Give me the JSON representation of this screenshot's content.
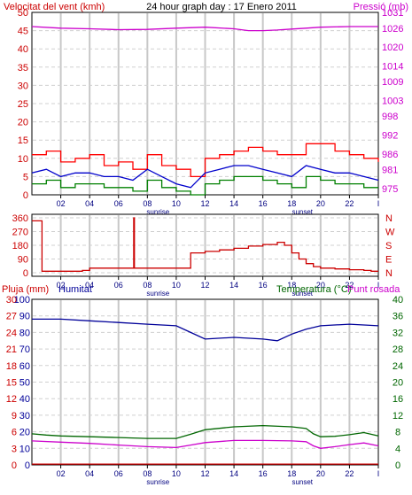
{
  "chart_data": [
    {
      "type": "line",
      "title": "24 hour graph day : 17 Enero 2011",
      "left_axis_label": "Velocitat del vent (kmh)",
      "right_axis_label": "Pressió (mb)",
      "x_ticks": [
        "02",
        "04",
        "06",
        "08",
        "10",
        "12",
        "14",
        "16",
        "18",
        "20",
        "22",
        "I"
      ],
      "x_annotations": [
        {
          "x": 8,
          "label": "sunrise"
        },
        {
          "x": 18,
          "label": "sunset"
        }
      ],
      "xlim": [
        0,
        24
      ],
      "ylim_left": [
        0,
        50
      ],
      "yticks_left": [
        0,
        5,
        10,
        15,
        20,
        25,
        30,
        35,
        40,
        45,
        50
      ],
      "ylim_right": [
        973,
        1031
      ],
      "yticks_right": [
        975,
        981,
        986,
        992,
        998,
        1003,
        1009,
        1014,
        1020,
        1026,
        1031
      ],
      "grid": true,
      "series": [
        {
          "role": "gust",
          "axis": "left",
          "color": "#ff0000",
          "style": "step",
          "x": [
            0,
            1,
            2,
            3,
            4,
            5,
            6,
            7,
            8,
            9,
            10,
            11,
            12,
            13,
            14,
            15,
            16,
            17,
            18,
            19,
            20,
            21,
            22,
            23,
            24
          ],
          "y": [
            11,
            12,
            9,
            10,
            11,
            8,
            9,
            7,
            11,
            8,
            7,
            5,
            10,
            11,
            12,
            13,
            12,
            11,
            11,
            14,
            14,
            12,
            11,
            10,
            9
          ]
        },
        {
          "role": "speed",
          "axis": "left",
          "color": "#0000cc",
          "style": "line",
          "x": [
            0,
            1,
            2,
            3,
            4,
            5,
            6,
            7,
            8,
            9,
            10,
            11,
            12,
            13,
            14,
            15,
            16,
            17,
            18,
            19,
            20,
            21,
            22,
            23,
            24
          ],
          "y": [
            6,
            7,
            5,
            6,
            6,
            5,
            5,
            4,
            7,
            5,
            3,
            2,
            6,
            7,
            8,
            8,
            7,
            6,
            5,
            8,
            7,
            6,
            6,
            5,
            4
          ]
        },
        {
          "role": "lull",
          "axis": "left",
          "color": "#008000",
          "style": "step",
          "x": [
            0,
            1,
            2,
            3,
            4,
            5,
            6,
            7,
            8,
            9,
            10,
            11,
            12,
            13,
            14,
            15,
            16,
            17,
            18,
            19,
            20,
            21,
            22,
            23,
            24
          ],
          "y": [
            3,
            4,
            2,
            3,
            3,
            2,
            2,
            1,
            4,
            2,
            1,
            0,
            3,
            4,
            5,
            5,
            4,
            3,
            2,
            5,
            4,
            3,
            3,
            2,
            2
          ]
        },
        {
          "name": "Pressió",
          "axis": "right",
          "color": "#cc00cc",
          "style": "line",
          "x": [
            0,
            2,
            4,
            6,
            8,
            10,
            12,
            14,
            15,
            16,
            17,
            18,
            19,
            20,
            22,
            24
          ],
          "y": [
            1026.5,
            1026.0,
            1025.8,
            1025.5,
            1025.6,
            1026.0,
            1026.3,
            1025.8,
            1025.2,
            1025.2,
            1025.4,
            1025.7,
            1026.0,
            1026.3,
            1026.5,
            1026.5
          ]
        }
      ]
    },
    {
      "type": "line",
      "x_ticks": [
        "02",
        "04",
        "06",
        "08",
        "10",
        "12",
        "14",
        "16",
        "18",
        "20",
        "22",
        "I"
      ],
      "x_annotations": [
        {
          "x": 8,
          "label": "sunrise"
        },
        {
          "x": 18,
          "label": "sunset"
        }
      ],
      "xlim": [
        0,
        24
      ],
      "ylim": [
        0,
        360
      ],
      "yticks_left": [
        0,
        90,
        180,
        270,
        360
      ],
      "yticks_right": [
        "N",
        "E",
        "S",
        "W",
        "N"
      ],
      "grid": true,
      "series": [
        {
          "role": "wind-direction",
          "color": "#cc0000",
          "style": "step",
          "x": [
            0,
            0.6,
            0.7,
            2,
            3,
            3.5,
            4,
            5,
            6,
            7,
            7.05,
            7.1,
            8,
            9,
            10,
            10.9,
            11,
            12,
            13,
            14,
            15,
            16,
            17,
            17.5,
            18,
            18.5,
            19,
            19.5,
            20,
            21,
            22,
            23,
            23.5,
            24
          ],
          "y": [
            340,
            340,
            10,
            10,
            10,
            15,
            30,
            30,
            30,
            30,
            360,
            30,
            30,
            30,
            30,
            30,
            130,
            140,
            150,
            160,
            175,
            185,
            200,
            180,
            130,
            90,
            60,
            40,
            30,
            25,
            20,
            15,
            10,
            10
          ]
        }
      ]
    },
    {
      "type": "line",
      "left_axis_label": "Pluja (mm)",
      "left2_axis_label": "Humitat",
      "right_axis_label": "Temperatura (°C)",
      "right2_axis_label": "Punt rosada",
      "x_ticks": [
        "02",
        "04",
        "06",
        "08",
        "10",
        "12",
        "14",
        "16",
        "18",
        "20",
        "22",
        "I"
      ],
      "x_annotations": [
        {
          "x": 8,
          "label": "sunrise"
        },
        {
          "x": 18,
          "label": "sunset"
        }
      ],
      "xlim": [
        0,
        24
      ],
      "yticks_rain": [
        0,
        3,
        6,
        9,
        12,
        15,
        18,
        21,
        24,
        27,
        30
      ],
      "yticks_humidity": [
        0,
        10,
        20,
        30,
        40,
        50,
        60,
        70,
        80,
        90,
        100
      ],
      "ylim_right": [
        0,
        40
      ],
      "yticks_right": [
        0,
        4,
        8,
        12,
        16,
        20,
        24,
        28,
        32,
        36,
        40
      ],
      "grid": true,
      "series": [
        {
          "name": "Humitat",
          "axis": "humidity",
          "color": "#000099",
          "style": "line",
          "x": [
            0,
            2,
            4,
            6,
            8,
            10,
            11,
            12,
            14,
            16,
            17,
            18,
            19,
            20,
            22,
            24
          ],
          "y": [
            88,
            88,
            87,
            86,
            85,
            84,
            80,
            76,
            77,
            76,
            75,
            79,
            82,
            84,
            85,
            84
          ]
        },
        {
          "name": "Temperatura",
          "axis": "right",
          "color": "#006600",
          "style": "line",
          "x": [
            0,
            1,
            2,
            4,
            6,
            8,
            10,
            11,
            12,
            14,
            16,
            18,
            19,
            19.5,
            20,
            21,
            22,
            23,
            24
          ],
          "y": [
            7.5,
            7.2,
            7.0,
            6.8,
            6.6,
            6.4,
            6.4,
            7.4,
            8.5,
            9.2,
            9.5,
            9.2,
            8.8,
            7.5,
            6.8,
            6.9,
            7.3,
            7.8,
            7.0
          ]
        },
        {
          "name": "Punt rosada",
          "axis": "right",
          "color": "#cc00cc",
          "style": "line",
          "x": [
            0,
            2,
            4,
            6,
            8,
            10,
            11,
            12,
            14,
            16,
            18,
            19,
            19.5,
            20,
            21,
            22,
            23,
            24
          ],
          "y": [
            5.8,
            5.5,
            5.2,
            4.8,
            4.4,
            4.2,
            4.8,
            5.4,
            5.9,
            5.9,
            5.8,
            5.6,
            4.6,
            4.0,
            4.4,
            4.9,
            5.3,
            4.6
          ]
        },
        {
          "name": "Pluja",
          "axis": "rain",
          "color": "#cc0000",
          "style": "line",
          "x": [
            0,
            24
          ],
          "y": [
            0,
            0
          ]
        }
      ]
    }
  ]
}
